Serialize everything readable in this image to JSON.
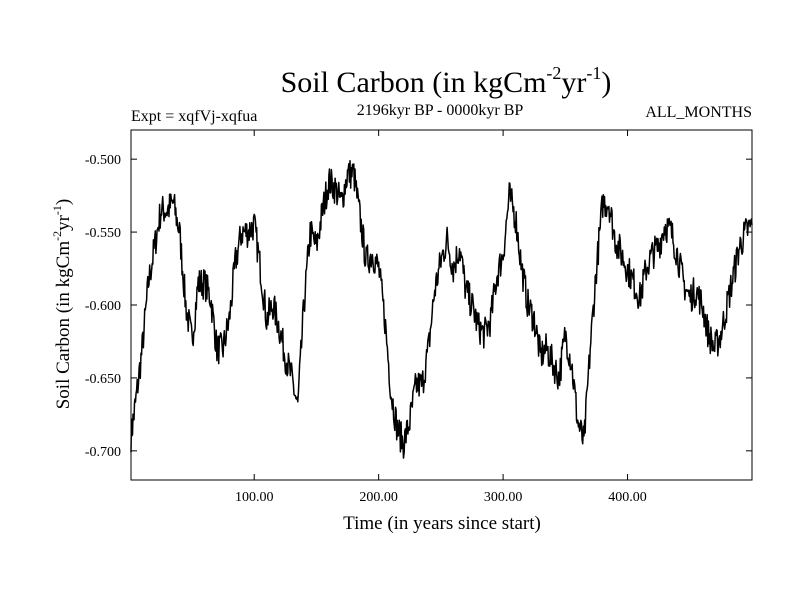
{
  "chart_data": {
    "type": "line",
    "title": {
      "main": "Soil Carbon (in kgCm",
      "sup1": "-2",
      "mid": "yr",
      "sup2": "-1",
      "end": ")"
    },
    "subtitle_left": "Expt = xqfVj-xqfua",
    "subtitle_center": "2196kyr BP - 0000kyr BP",
    "subtitle_right": "ALL_MONTHS",
    "xlabel": "Time (in years since start)",
    "ylabel": {
      "main": "Soil Carbon (in kgCm",
      "sup1": "-2",
      "mid": "yr",
      "sup2": "-1",
      "end": ")"
    },
    "xlim": [
      1,
      500
    ],
    "ylim": [
      -0.72,
      -0.48
    ],
    "xticks": [
      100,
      200,
      300,
      400
    ],
    "xtick_labels": [
      "100.00",
      "200.00",
      "300.00",
      "400.00"
    ],
    "yticks": [
      -0.5,
      -0.55,
      -0.6,
      -0.65,
      -0.7
    ],
    "ytick_labels": [
      "-0.500",
      "-0.550",
      "-0.600",
      "-0.650",
      "-0.700"
    ],
    "line_color": "#000000",
    "series_anchors": {
      "x": [
        1,
        5,
        10,
        15,
        20,
        25,
        30,
        35,
        40,
        45,
        50,
        55,
        60,
        65,
        70,
        75,
        80,
        85,
        90,
        95,
        100,
        105,
        110,
        115,
        120,
        125,
        130,
        135,
        140,
        145,
        150,
        155,
        160,
        165,
        170,
        175,
        180,
        185,
        190,
        195,
        200,
        205,
        210,
        215,
        220,
        225,
        230,
        235,
        240,
        245,
        250,
        255,
        260,
        265,
        270,
        275,
        280,
        285,
        290,
        295,
        300,
        305,
        310,
        315,
        320,
        325,
        330,
        335,
        340,
        345,
        350,
        355,
        360,
        365,
        370,
        375,
        380,
        385,
        390,
        395,
        400,
        405,
        410,
        415,
        420,
        425,
        430,
        435,
        440,
        445,
        450,
        455,
        460,
        465,
        470,
        475,
        480,
        485,
        490,
        495,
        500
      ],
      "y": [
        -0.69,
        -0.665,
        -0.63,
        -0.585,
        -0.56,
        -0.535,
        -0.535,
        -0.53,
        -0.55,
        -0.6,
        -0.625,
        -0.585,
        -0.585,
        -0.595,
        -0.63,
        -0.63,
        -0.61,
        -0.57,
        -0.55,
        -0.55,
        -0.545,
        -0.575,
        -0.61,
        -0.6,
        -0.615,
        -0.635,
        -0.65,
        -0.67,
        -0.6,
        -0.55,
        -0.56,
        -0.535,
        -0.515,
        -0.52,
        -0.53,
        -0.51,
        -0.51,
        -0.54,
        -0.57,
        -0.565,
        -0.575,
        -0.61,
        -0.66,
        -0.685,
        -0.695,
        -0.68,
        -0.655,
        -0.655,
        -0.63,
        -0.59,
        -0.57,
        -0.555,
        -0.575,
        -0.56,
        -0.59,
        -0.6,
        -0.615,
        -0.62,
        -0.61,
        -0.58,
        -0.565,
        -0.525,
        -0.54,
        -0.575,
        -0.6,
        -0.61,
        -0.635,
        -0.63,
        -0.64,
        -0.65,
        -0.62,
        -0.64,
        -0.68,
        -0.695,
        -0.63,
        -0.575,
        -0.53,
        -0.53,
        -0.555,
        -0.565,
        -0.575,
        -0.585,
        -0.595,
        -0.575,
        -0.565,
        -0.56,
        -0.545,
        -0.55,
        -0.565,
        -0.585,
        -0.595,
        -0.59,
        -0.6,
        -0.62,
        -0.63,
        -0.62,
        -0.6,
        -0.58,
        -0.56,
        -0.55,
        -0.545
      ]
    }
  }
}
